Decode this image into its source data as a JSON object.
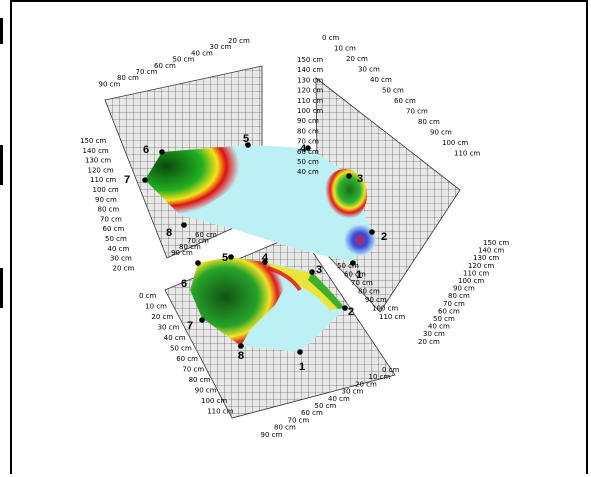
{
  "unit": "cm",
  "axes": {
    "back_left_top": [
      "20",
      "30",
      "40",
      "50",
      "60",
      "70",
      "80",
      "90"
    ],
    "back_left_vertical": [
      "150",
      "140",
      "130",
      "120",
      "110",
      "100",
      "90",
      "80",
      "70",
      "60",
      "50",
      "40",
      "30",
      "20"
    ],
    "back_right_top": [
      "0",
      "10",
      "20",
      "30",
      "40",
      "50",
      "60",
      "70",
      "80",
      "90",
      "100",
      "110"
    ],
    "back_right_vertical": [
      "150",
      "140",
      "130",
      "120",
      "110",
      "100",
      "90",
      "80",
      "70",
      "60",
      "50",
      "40"
    ],
    "right_vertical": [
      "150",
      "140",
      "130",
      "120",
      "110",
      "100",
      "90",
      "80",
      "70",
      "60",
      "50",
      "40",
      "30",
      "20"
    ],
    "floor_left": [
      "0",
      "10",
      "20",
      "30",
      "40",
      "50",
      "60",
      "70",
      "80",
      "90",
      "100",
      "110"
    ],
    "floor_right": [
      "0",
      "10",
      "20",
      "30",
      "40",
      "50",
      "60",
      "70",
      "80",
      "90"
    ],
    "mid_labels_left": [
      "60",
      "70",
      "80",
      "90"
    ],
    "mid_labels_center": [
      "50",
      "60",
      "70",
      "80",
      "90",
      "100",
      "110"
    ]
  },
  "points_upper": [
    "1",
    "2",
    "3",
    "4",
    "5",
    "6",
    "7",
    "8"
  ],
  "points_lower": [
    "1",
    "2",
    "3",
    "4",
    "5",
    "6",
    "7",
    "8"
  ],
  "colors": {
    "background": "#ffffff",
    "grid": "#333333",
    "panel": "#e6e6e6",
    "surface_light": "#bdf0f5",
    "green_dark": "#0a5a0a",
    "green": "#1aa31a",
    "yellow": "#f5e21a",
    "red": "#e01010",
    "blue": "#2a3ad0"
  }
}
